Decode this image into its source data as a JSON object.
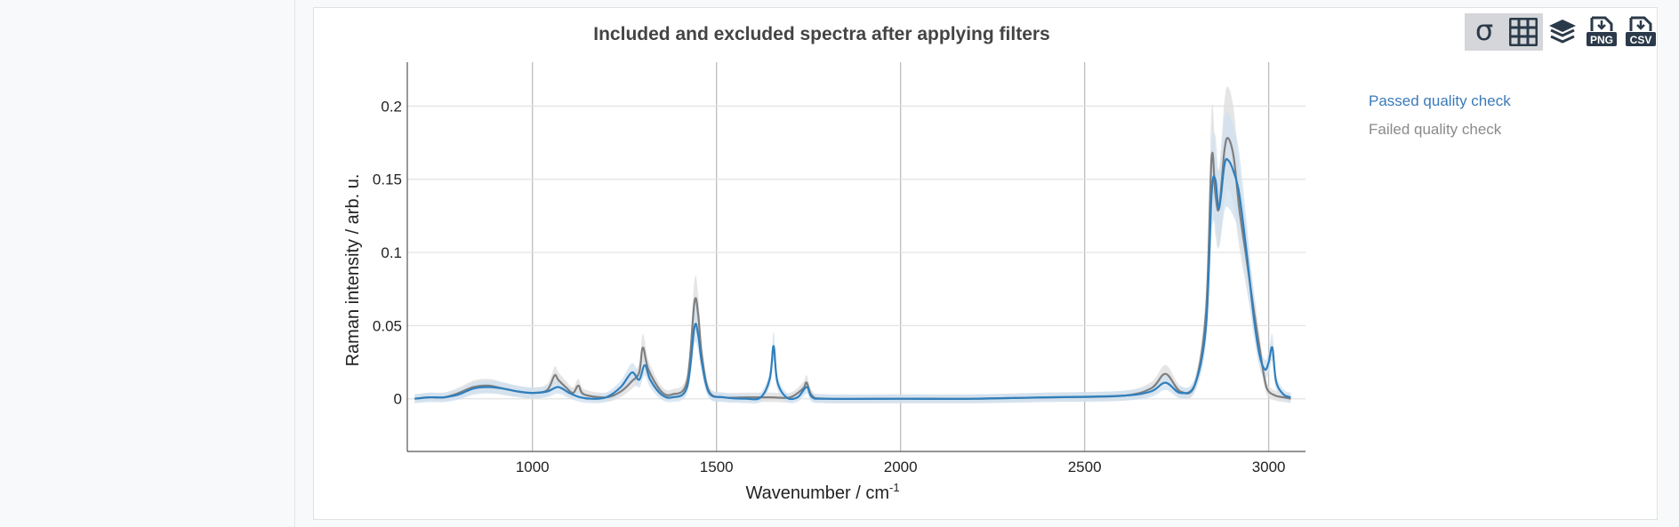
{
  "chart_data": {
    "type": "line",
    "title": "Included and excluded spectra after applying filters",
    "xlabel": "Wavenumber / cm",
    "xlabel_superscript": "-1",
    "ylabel": "Raman intensity / arb. u.",
    "xlim": [
      660,
      3100
    ],
    "ylim": [
      -0.036,
      0.23
    ],
    "x_ticks": [
      1000,
      1500,
      2000,
      2500,
      3000
    ],
    "x_tick_labels": [
      "1000",
      "1500",
      "2000",
      "2500",
      "3000"
    ],
    "y_ticks": [
      0,
      0.05,
      0.1,
      0.15,
      0.2
    ],
    "y_tick_labels": [
      "0",
      "0.05",
      "0.1",
      "0.15",
      "0.2"
    ],
    "grid": true,
    "legend_position": "top-right, outside plot",
    "series": [
      {
        "name": "Passed quality check",
        "color": "#2f7fbd",
        "band_color": "#cfe0f0",
        "x": [
          680,
          720,
          760,
          800,
          840,
          880,
          920,
          960,
          1000,
          1040,
          1070,
          1100,
          1130,
          1160,
          1200,
          1240,
          1270,
          1290,
          1305,
          1320,
          1350,
          1380,
          1420,
          1440,
          1450,
          1460,
          1480,
          1520,
          1580,
          1620,
          1645,
          1655,
          1665,
          1690,
          1720,
          1745,
          1760,
          1800,
          2000,
          2200,
          2400,
          2600,
          2680,
          2720,
          2760,
          2800,
          2830,
          2845,
          2855,
          2865,
          2880,
          2890,
          2905,
          2920,
          2940,
          2960,
          2975,
          2990,
          3000,
          3010,
          3020,
          3040,
          3060
        ],
        "y": [
          0.0,
          0.001,
          0.001,
          0.003,
          0.007,
          0.008,
          0.007,
          0.005,
          0.004,
          0.005,
          0.008,
          0.004,
          0.001,
          0.0,
          0.001,
          0.008,
          0.018,
          0.013,
          0.023,
          0.013,
          0.003,
          0.001,
          0.008,
          0.049,
          0.044,
          0.025,
          0.004,
          0.001,
          0.0,
          0.001,
          0.014,
          0.036,
          0.012,
          0.001,
          0.001,
          0.008,
          0.001,
          0.0,
          0.0,
          0.0,
          0.001,
          0.002,
          0.005,
          0.011,
          0.004,
          0.01,
          0.05,
          0.14,
          0.15,
          0.13,
          0.16,
          0.163,
          0.155,
          0.14,
          0.1,
          0.055,
          0.03,
          0.02,
          0.025,
          0.035,
          0.012,
          0.003,
          0.001
        ]
      },
      {
        "name": "Failed quality check",
        "color": "#7f7f7f",
        "band_color": "#dcdcdc",
        "x": [
          680,
          720,
          760,
          800,
          840,
          880,
          920,
          960,
          1000,
          1040,
          1060,
          1070,
          1090,
          1110,
          1125,
          1140,
          1200,
          1240,
          1270,
          1290,
          1300,
          1315,
          1350,
          1380,
          1420,
          1440,
          1450,
          1460,
          1480,
          1520,
          1580,
          1650,
          1700,
          1735,
          1745,
          1760,
          1800,
          2000,
          2200,
          2400,
          2600,
          2680,
          2720,
          2760,
          2800,
          2830,
          2845,
          2855,
          2865,
          2880,
          2890,
          2905,
          2920,
          2940,
          2960,
          2975,
          2990,
          3000,
          3020,
          3040,
          3060
        ],
        "y": [
          0.0,
          0.001,
          0.001,
          0.004,
          0.008,
          0.009,
          0.007,
          0.005,
          0.004,
          0.006,
          0.016,
          0.013,
          0.008,
          0.004,
          0.009,
          0.003,
          0.001,
          0.005,
          0.012,
          0.018,
          0.035,
          0.02,
          0.005,
          0.003,
          0.012,
          0.066,
          0.058,
          0.03,
          0.005,
          0.001,
          0.001,
          0.001,
          0.001,
          0.007,
          0.011,
          0.002,
          0.0,
          0.0,
          0.0,
          0.001,
          0.002,
          0.007,
          0.017,
          0.005,
          0.01,
          0.06,
          0.165,
          0.14,
          0.13,
          0.17,
          0.178,
          0.165,
          0.13,
          0.095,
          0.06,
          0.035,
          0.012,
          0.005,
          0.002,
          0.001,
          0.0
        ]
      }
    ]
  },
  "toolbar": {
    "buttons": [
      {
        "icon": "sigma-icon",
        "glyph": "σ",
        "active": true
      },
      {
        "icon": "table-icon",
        "active": true
      },
      {
        "icon": "layers-icon",
        "active": false
      },
      {
        "icon": "png-export-icon",
        "label": "PNG",
        "active": false
      },
      {
        "icon": "csv-export-icon",
        "label": "CSV",
        "active": false
      }
    ]
  }
}
